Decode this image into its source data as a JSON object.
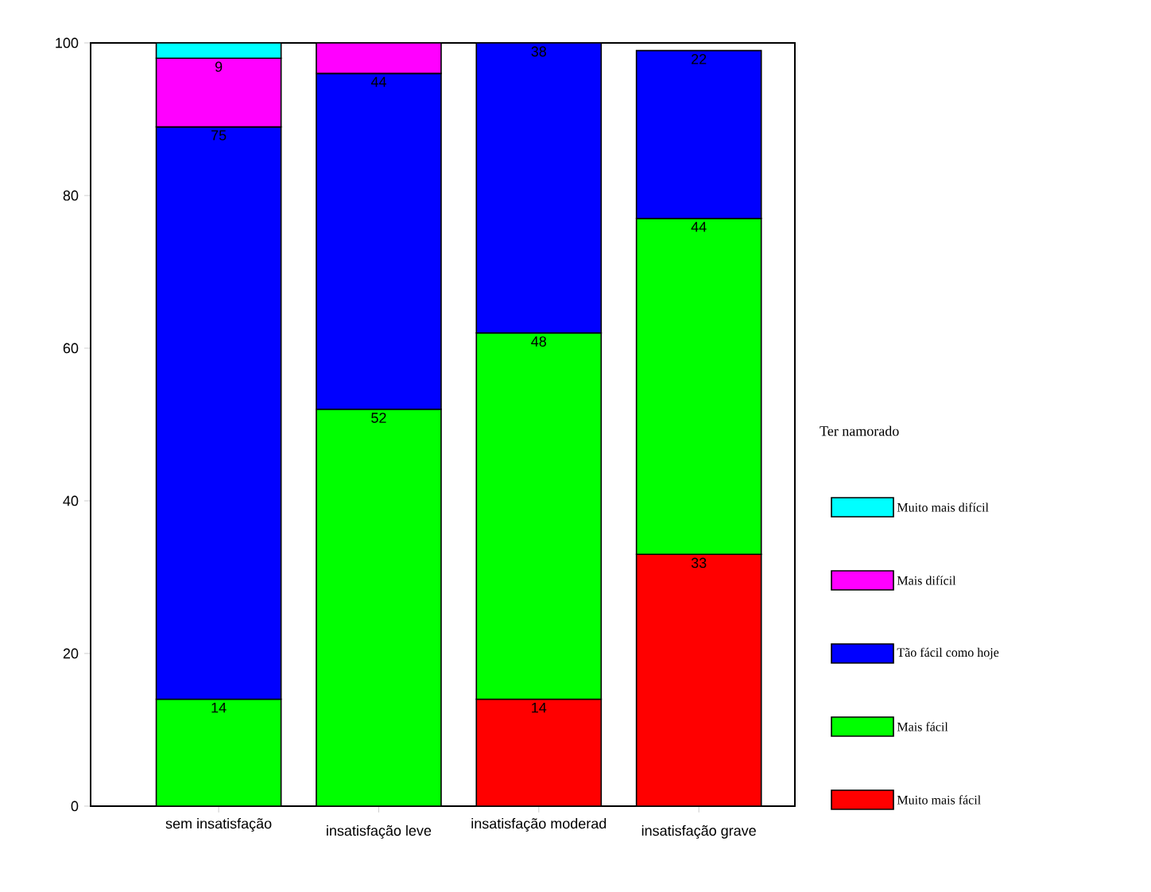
{
  "chart_data": {
    "type": "bar",
    "stacked": true,
    "legend_title": "Ter namorado",
    "legend": "right",
    "categories": [
      "sem insatisfação",
      "insatisfação leve",
      "insatisfação moderad",
      "insatisfação grave"
    ],
    "ylim": [
      0,
      100
    ],
    "yticks": [
      0,
      20,
      40,
      60,
      80,
      100
    ],
    "grid": false,
    "series": [
      {
        "name": "Muito mais fácil",
        "color": "#ff0000",
        "values": [
          null,
          null,
          14,
          33
        ],
        "value_labels": [
          null,
          null,
          "14",
          "33"
        ]
      },
      {
        "name": "Mais fácil",
        "color": "#00ff00",
        "values": [
          14,
          52,
          48,
          44
        ],
        "value_labels": [
          "14",
          "52",
          "48",
          "44"
        ]
      },
      {
        "name": "Tão fácil como hoje",
        "color": "#0000ff",
        "values": [
          75,
          44,
          38,
          22
        ],
        "value_labels": [
          "75",
          "44",
          "38",
          "22"
        ]
      },
      {
        "name": "Mais difícil",
        "color": "#ff00ff",
        "values": [
          9,
          4,
          null,
          null
        ],
        "value_labels": [
          "9",
          null,
          null,
          null
        ]
      },
      {
        "name": "Muito mais difícil",
        "color": "#00ffff",
        "values": [
          2,
          null,
          null,
          null
        ],
        "value_labels": [
          null,
          null,
          null,
          null
        ]
      }
    ]
  }
}
